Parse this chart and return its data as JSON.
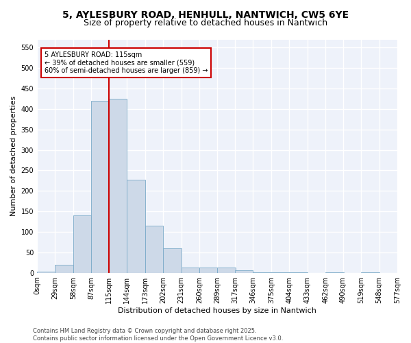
{
  "title": "5, AYLESBURY ROAD, HENHULL, NANTWICH, CW5 6YE",
  "subtitle": "Size of property relative to detached houses in Nantwich",
  "xlabel": "Distribution of detached houses by size in Nantwich",
  "ylabel": "Number of detached properties",
  "bar_color": "#cdd9e8",
  "bar_edge_color": "#7aaac8",
  "fig_background": "#ffffff",
  "plot_background": "#eef2fa",
  "grid_color": "#ffffff",
  "vline_x": 115,
  "vline_color": "#cc0000",
  "bins": [
    0,
    29,
    58,
    87,
    115,
    144,
    173,
    202,
    231,
    260,
    289,
    317,
    346,
    375,
    404,
    433,
    462,
    490,
    519,
    548,
    577
  ],
  "bin_labels": [
    "0sqm",
    "29sqm",
    "58sqm",
    "87sqm",
    "115sqm",
    "144sqm",
    "173sqm",
    "202sqm",
    "231sqm",
    "260sqm",
    "289sqm",
    "317sqm",
    "346sqm",
    "375sqm",
    "404sqm",
    "433sqm",
    "462sqm",
    "490sqm",
    "519sqm",
    "548sqm",
    "577sqm"
  ],
  "bar_heights": [
    2,
    20,
    140,
    420,
    425,
    228,
    115,
    60,
    13,
    13,
    13,
    6,
    1,
    1,
    1,
    0,
    1,
    0,
    1,
    0
  ],
  "ylim": [
    0,
    570
  ],
  "yticks": [
    0,
    50,
    100,
    150,
    200,
    250,
    300,
    350,
    400,
    450,
    500,
    550
  ],
  "annotation_text": "5 AYLESBURY ROAD: 115sqm\n← 39% of detached houses are smaller (559)\n60% of semi-detached houses are larger (859) →",
  "annotation_box_facecolor": "#ffffff",
  "annotation_box_edgecolor": "#cc0000",
  "footer": "Contains HM Land Registry data © Crown copyright and database right 2025.\nContains public sector information licensed under the Open Government Licence v3.0.",
  "title_fontsize": 10,
  "subtitle_fontsize": 9,
  "axis_label_fontsize": 8,
  "tick_fontsize": 7,
  "annotation_fontsize": 7,
  "footer_fontsize": 6
}
